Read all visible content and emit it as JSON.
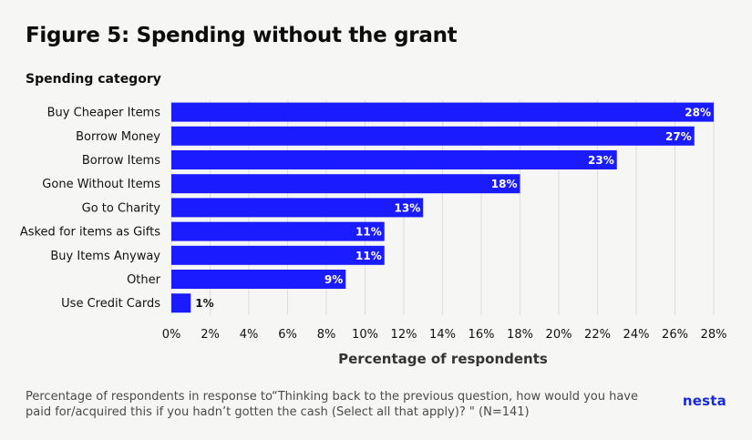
{
  "title": "Figure 5: Spending without the grant",
  "footer": {
    "caption": "Percentage of respondents in response to“Thinking back to the previous question, how would you have paid for/acquired this if you hadn’t gotten the cash (Select all that apply)? \" (N=141)",
    "logo": "nesta"
  },
  "colors": {
    "bar": "#1a1cff",
    "grid": "#dedede",
    "background": "#f6f6f4"
  },
  "chart_data": {
    "type": "bar",
    "orientation": "horizontal",
    "title": "Figure 5: Spending without the grant",
    "ylabel": "Spending category",
    "xlabel": "Percentage of respondents",
    "categories": [
      "Buy Cheaper Items",
      "Borrow Money",
      "Borrow Items",
      "Gone Without Items",
      "Go to Charity",
      "Asked for items as Gifts",
      "Buy Items Anyway",
      "Other",
      "Use Credit Cards"
    ],
    "values": [
      28,
      27,
      23,
      18,
      13,
      11,
      11,
      9,
      1
    ],
    "data_labels": [
      "28%",
      "27%",
      "23%",
      "18%",
      "13%",
      "11%",
      "11%",
      "9%",
      "1%"
    ],
    "xlim": [
      0,
      28
    ],
    "xticks": [
      0,
      2,
      4,
      6,
      8,
      10,
      12,
      14,
      16,
      18,
      20,
      22,
      24,
      26,
      28
    ],
    "xtick_labels": [
      "0%",
      "2%",
      "4%",
      "6%",
      "8%",
      "10%",
      "12%",
      "14%",
      "16%",
      "18%",
      "20%",
      "22%",
      "24%",
      "26%",
      "28%"
    ],
    "grid": true
  }
}
